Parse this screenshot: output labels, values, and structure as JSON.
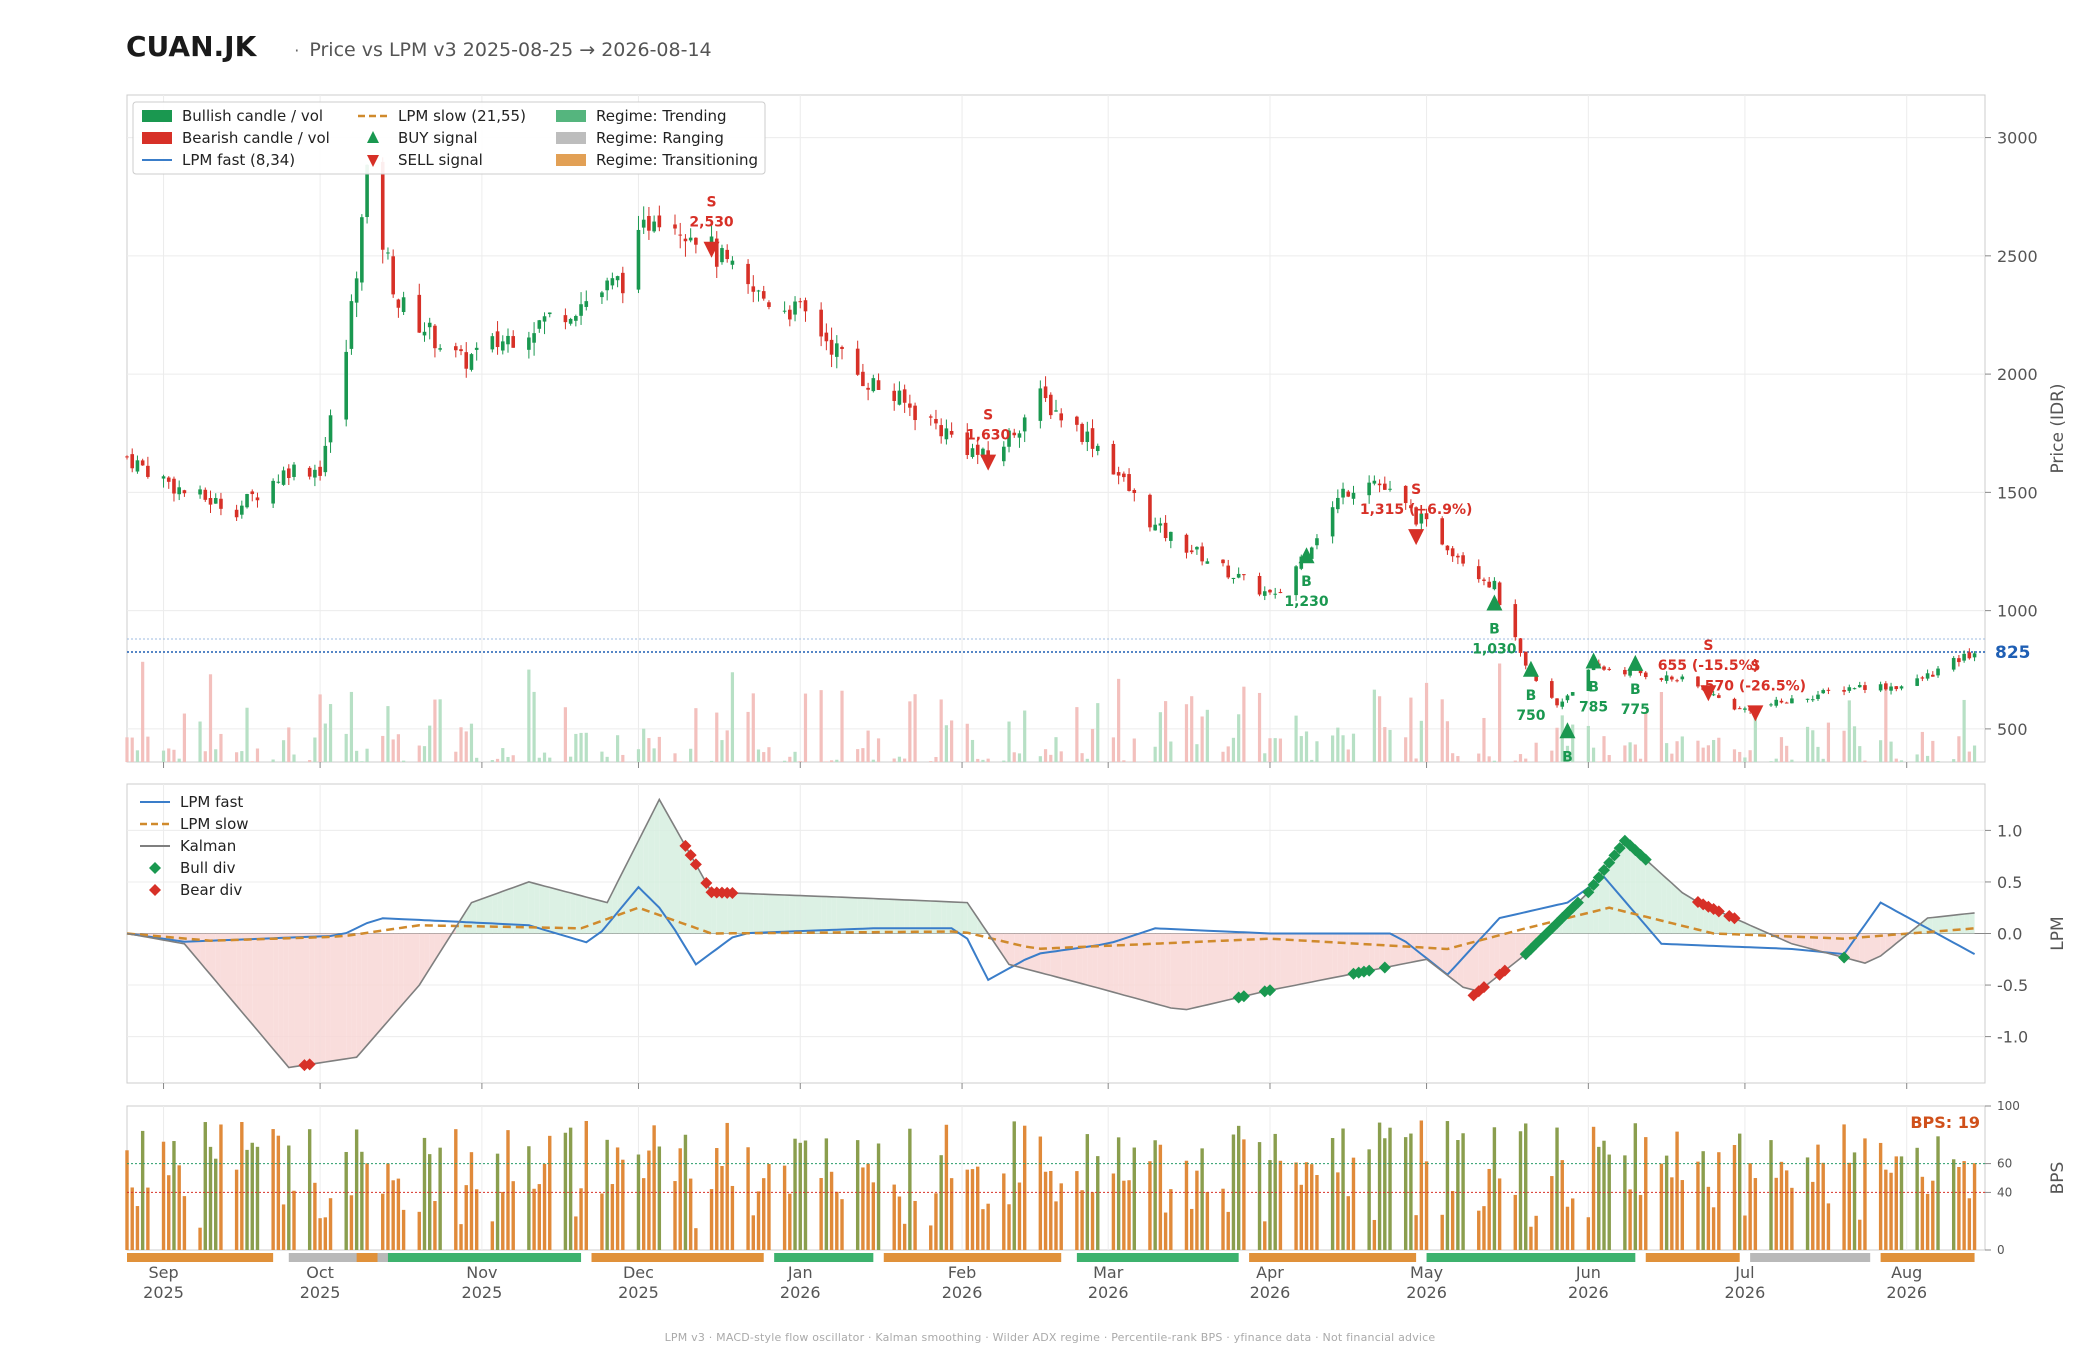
{
  "header": {
    "ticker": "CUAN.JK",
    "separator": "·",
    "subtitle": "Price vs LPM v3  2025-08-25 → 2026-08-14"
  },
  "footer": "LPM v3  ·  MACD-style flow oscillator  ·  Kalman smoothing  ·  Wilder ADX regime  ·  Percentile-rank BPS  ·  yfinance data  ·  Not financial advice",
  "colors": {
    "bull": "#1a9850",
    "bear": "#d73027",
    "fast": "#3a7dc9",
    "slow": "#d08a2c",
    "kalman": "#7f7f7f",
    "trending": "#3db26e",
    "ranging": "#b9b9b9",
    "transitioning": "#e0913a",
    "current": "#1f5fb4",
    "bps": "#d0501a"
  },
  "legends": {
    "price": [
      {
        "label": "Bullish candle / vol",
        "kind": "patch",
        "color": "#1a9850"
      },
      {
        "label": "Bearish candle / vol",
        "kind": "patch",
        "color": "#d73027"
      },
      {
        "label": "LPM fast (8,34)",
        "kind": "line",
        "color": "#3a7dc9"
      },
      {
        "label": "LPM slow (21,55)",
        "kind": "dash",
        "color": "#d08a2c"
      },
      {
        "label": "BUY signal",
        "kind": "up",
        "color": "#1a9850"
      },
      {
        "label": "SELL signal",
        "kind": "down",
        "color": "#d73027"
      },
      {
        "label": "Regime: Trending",
        "kind": "patch",
        "color": "#55b57e"
      },
      {
        "label": "Regime: Ranging",
        "kind": "patch",
        "color": "#bdbdbd"
      },
      {
        "label": "Regime: Transitioning",
        "kind": "patch",
        "color": "#e2a055"
      }
    ],
    "lpm": [
      {
        "label": "LPM fast",
        "kind": "line",
        "color": "#3a7dc9"
      },
      {
        "label": "LPM slow",
        "kind": "dash",
        "color": "#d08a2c"
      },
      {
        "label": "Kalman",
        "kind": "line",
        "color": "#7f7f7f"
      },
      {
        "label": "Bull div",
        "kind": "diamond",
        "color": "#1a9850"
      },
      {
        "label": "Bear div",
        "kind": "diamond",
        "color": "#d73027"
      }
    ]
  },
  "chart_data": [
    {
      "type": "candlestick",
      "panel": "price",
      "ylabel": "Price (IDR)",
      "ylim": [
        360,
        3180
      ],
      "yticks": [
        500,
        1000,
        1500,
        2000,
        2500,
        3000
      ],
      "current_price": 825,
      "current_price_label": "825",
      "close_series": [
        {
          "date": "2025-08-25",
          "close": 1650
        },
        {
          "date": "2025-09-05",
          "close": 1500
        },
        {
          "date": "2025-09-15",
          "close": 1430
        },
        {
          "date": "2025-09-25",
          "close": 1600
        },
        {
          "date": "2025-10-01",
          "close": 1600
        },
        {
          "date": "2025-10-06",
          "close": 2100
        },
        {
          "date": "2025-10-10",
          "close": 2820
        },
        {
          "date": "2025-10-16",
          "close": 2300
        },
        {
          "date": "2025-10-28",
          "close": 2050
        },
        {
          "date": "2025-11-10",
          "close": 2200
        },
        {
          "date": "2025-11-20",
          "close": 2300
        },
        {
          "date": "2025-11-28",
          "close": 2400
        },
        {
          "date": "2025-12-04",
          "close": 2700
        },
        {
          "date": "2025-12-12",
          "close": 2600
        },
        {
          "date": "2025-12-22",
          "close": 2350
        },
        {
          "date": "2026-01-02",
          "close": 2250
        },
        {
          "date": "2026-01-12",
          "close": 2000
        },
        {
          "date": "2026-01-26",
          "close": 1800
        },
        {
          "date": "2026-02-06",
          "close": 1630
        },
        {
          "date": "2026-02-16",
          "close": 1900
        },
        {
          "date": "2026-02-27",
          "close": 1700
        },
        {
          "date": "2026-03-10",
          "close": 1350
        },
        {
          "date": "2026-03-25",
          "close": 1150
        },
        {
          "date": "2026-04-02",
          "close": 1050
        },
        {
          "date": "2026-04-15",
          "close": 1500
        },
        {
          "date": "2026-04-20",
          "close": 1570
        },
        {
          "date": "2026-05-04",
          "close": 1300
        },
        {
          "date": "2026-05-14",
          "close": 1100
        },
        {
          "date": "2026-05-20",
          "close": 750
        },
        {
          "date": "2026-05-26",
          "close": 600
        },
        {
          "date": "2026-06-02",
          "close": 760
        },
        {
          "date": "2026-06-10",
          "close": 740
        },
        {
          "date": "2026-06-20",
          "close": 700
        },
        {
          "date": "2026-06-30",
          "close": 580
        },
        {
          "date": "2026-07-10",
          "close": 620
        },
        {
          "date": "2026-07-22",
          "close": 680
        },
        {
          "date": "2026-08-01",
          "close": 680
        },
        {
          "date": "2026-08-14",
          "close": 825
        }
      ],
      "signals": [
        {
          "type": "SELL",
          "date": "2025-12-15",
          "price": 2530,
          "label": "2,530"
        },
        {
          "type": "SELL",
          "date": "2026-02-06",
          "price": 1630,
          "label": "1,630"
        },
        {
          "type": "BUY",
          "date": "2026-04-08",
          "price": 1230,
          "label": "1,230"
        },
        {
          "type": "SELL",
          "date": "2026-04-29",
          "price": 1315,
          "label": "1,315 (+6.9%)"
        },
        {
          "type": "BUY",
          "date": "2026-05-14",
          "price": 1030,
          "label": "1,030"
        },
        {
          "type": "BUY",
          "date": "2026-05-21",
          "price": 750,
          "label": "750"
        },
        {
          "type": "BUY",
          "date": "2026-05-28",
          "price": 490,
          "label": ""
        },
        {
          "type": "BUY",
          "date": "2026-06-02",
          "price": 785,
          "label": "785"
        },
        {
          "type": "BUY",
          "date": "2026-06-10",
          "price": 775,
          "label": "775"
        },
        {
          "type": "SELL",
          "date": "2026-06-24",
          "price": 655,
          "label": "655 (-15.5%)"
        },
        {
          "type": "SELL",
          "date": "2026-07-03",
          "price": 570,
          "label": "570 (-26.5%)"
        }
      ]
    },
    {
      "type": "line",
      "panel": "lpm",
      "ylabel": "LPM",
      "ylim": [
        -1.45,
        1.45
      ],
      "yticks": [
        -1.0,
        -0.5,
        0.0,
        0.5,
        1.0
      ],
      "series": [
        {
          "name": "LPM fast",
          "points": [
            [
              "2025-08-25",
              0
            ],
            [
              "2025-09-05",
              -0.08
            ],
            [
              "2025-09-20",
              -0.05
            ],
            [
              "2025-10-05",
              -0.02
            ],
            [
              "2025-10-12",
              0.15
            ],
            [
              "2025-10-25",
              0.12
            ],
            [
              "2025-11-10",
              0.08
            ],
            [
              "2025-11-22",
              -0.1
            ],
            [
              "2025-12-01",
              0.45
            ],
            [
              "2025-12-06",
              0.2
            ],
            [
              "2025-12-12",
              -0.3
            ],
            [
              "2025-12-20",
              0.0
            ],
            [
              "2026-01-15",
              0.05
            ],
            [
              "2026-02-01",
              0.05
            ],
            [
              "2026-02-06",
              -0.45
            ],
            [
              "2026-02-15",
              -0.2
            ],
            [
              "2026-03-01",
              -0.1
            ],
            [
              "2026-03-10",
              0.05
            ],
            [
              "2026-04-01",
              0.0
            ],
            [
              "2026-04-25",
              0.0
            ],
            [
              "2026-05-05",
              -0.4
            ],
            [
              "2026-05-15",
              0.15
            ],
            [
              "2026-05-28",
              0.3
            ],
            [
              "2026-06-04",
              0.55
            ],
            [
              "2026-06-15",
              -0.1
            ],
            [
              "2026-07-10",
              -0.15
            ],
            [
              "2026-07-20",
              -0.2
            ],
            [
              "2026-07-27",
              0.3
            ],
            [
              "2026-08-05",
              0.05
            ],
            [
              "2026-08-14",
              -0.2
            ]
          ]
        },
        {
          "name": "LPM slow",
          "points": [
            [
              "2025-08-25",
              0
            ],
            [
              "2025-09-10",
              -0.07
            ],
            [
              "2025-10-05",
              -0.03
            ],
            [
              "2025-10-20",
              0.08
            ],
            [
              "2025-11-20",
              0.05
            ],
            [
              "2025-12-01",
              0.25
            ],
            [
              "2025-12-15",
              0.0
            ],
            [
              "2026-02-01",
              0.02
            ],
            [
              "2026-02-15",
              -0.15
            ],
            [
              "2026-04-01",
              -0.05
            ],
            [
              "2026-05-05",
              -0.15
            ],
            [
              "2026-05-20",
              0.05
            ],
            [
              "2026-06-05",
              0.25
            ],
            [
              "2026-06-25",
              0.0
            ],
            [
              "2026-07-20",
              -0.05
            ],
            [
              "2026-08-14",
              0.05
            ]
          ]
        },
        {
          "name": "Kalman",
          "points": [
            [
              "2025-08-25",
              0
            ],
            [
              "2025-09-05",
              -0.1
            ],
            [
              "2025-09-15",
              -0.7
            ],
            [
              "2025-09-25",
              -1.3
            ],
            [
              "2025-10-08",
              -1.2
            ],
            [
              "2025-10-20",
              -0.5
            ],
            [
              "2025-10-30",
              0.3
            ],
            [
              "2025-11-10",
              0.5
            ],
            [
              "2025-11-25",
              0.3
            ],
            [
              "2025-12-05",
              1.3
            ],
            [
              "2025-12-15",
              0.4
            ],
            [
              "2026-01-10",
              0.35
            ],
            [
              "2026-02-02",
              0.3
            ],
            [
              "2026-02-10",
              -0.3
            ],
            [
              "2026-02-25",
              -0.5
            ],
            [
              "2026-03-15",
              -0.75
            ],
            [
              "2026-04-01",
              -0.55
            ],
            [
              "2026-05-01",
              -0.25
            ],
            [
              "2026-05-10",
              -0.6
            ],
            [
              "2026-05-20",
              -0.2
            ],
            [
              "2026-06-01",
              0.4
            ],
            [
              "2026-06-08",
              0.9
            ],
            [
              "2026-06-20",
              0.35
            ],
            [
              "2026-07-10",
              -0.1
            ],
            [
              "2026-07-25",
              -0.3
            ],
            [
              "2026-08-05",
              0.15
            ],
            [
              "2026-08-14",
              0.2
            ]
          ]
        }
      ],
      "divergences": [
        {
          "type": "bear",
          "dates": [
            "2025-09-28",
            "2025-09-29"
          ]
        },
        {
          "type": "bear",
          "dates": [
            "2025-12-10",
            "2025-12-11",
            "2025-12-12",
            "2025-12-14",
            "2025-12-15",
            "2025-12-16",
            "2025-12-17",
            "2025-12-18",
            "2025-12-19"
          ]
        },
        {
          "type": "bull",
          "dates": [
            "2026-03-26",
            "2026-03-27",
            "2026-03-31",
            "2026-04-01"
          ]
        },
        {
          "type": "bull",
          "dates": [
            "2026-04-17",
            "2026-04-18",
            "2026-04-19",
            "2026-04-20",
            "2026-04-23"
          ]
        },
        {
          "type": "bear",
          "dates": [
            "2026-05-10",
            "2026-05-11",
            "2026-05-12",
            "2026-05-15",
            "2026-05-16"
          ]
        },
        {
          "type": "bull",
          "dates": [
            "2026-05-20",
            "2026-05-21",
            "2026-05-22",
            "2026-05-23",
            "2026-05-24",
            "2026-05-25",
            "2026-05-26",
            "2026-05-27",
            "2026-05-28",
            "2026-05-29",
            "2026-05-30",
            "2026-06-01",
            "2026-06-02",
            "2026-06-03",
            "2026-06-04",
            "2026-06-05",
            "2026-06-06",
            "2026-06-07",
            "2026-06-08",
            "2026-06-09",
            "2026-06-10",
            "2026-06-11",
            "2026-06-12"
          ]
        },
        {
          "type": "bear",
          "dates": [
            "2026-06-22",
            "2026-06-23",
            "2026-06-24",
            "2026-06-25",
            "2026-06-26",
            "2026-06-28",
            "2026-06-29"
          ]
        },
        {
          "type": "bull",
          "dates": [
            "2026-07-20"
          ]
        }
      ]
    },
    {
      "type": "bar",
      "panel": "bps",
      "ylabel": "BPS",
      "ylim": [
        0,
        100
      ],
      "yticks": [
        0,
        40,
        60,
        100
      ],
      "thresholds": [
        60,
        40
      ],
      "current_label": "BPS: 19",
      "regimes": [
        {
          "start": "2025-08-25",
          "end": "2025-09-22",
          "regime": "Transitioning"
        },
        {
          "start": "2025-09-25",
          "end": "2025-10-27",
          "regime": "Ranging"
        },
        {
          "start": "2025-10-08",
          "end": "2025-10-12",
          "regime": "Transitioning"
        },
        {
          "start": "2025-10-14",
          "end": "2025-11-20",
          "regime": "Trending"
        },
        {
          "start": "2025-11-22",
          "end": "2025-12-25",
          "regime": "Transitioning"
        },
        {
          "start": "2025-12-27",
          "end": "2026-01-15",
          "regime": "Trending"
        },
        {
          "start": "2026-01-17",
          "end": "2026-02-20",
          "regime": "Transitioning"
        },
        {
          "start": "2026-02-23",
          "end": "2026-03-26",
          "regime": "Trending"
        },
        {
          "start": "2026-03-28",
          "end": "2026-04-29",
          "regime": "Transitioning"
        },
        {
          "start": "2026-05-01",
          "end": "2026-06-10",
          "regime": "Trending"
        },
        {
          "start": "2026-06-12",
          "end": "2026-06-30",
          "regime": "Transitioning"
        },
        {
          "start": "2026-07-02",
          "end": "2026-07-25",
          "regime": "Ranging"
        },
        {
          "start": "2026-07-27",
          "end": "2026-08-14",
          "regime": "Transitioning"
        }
      ]
    }
  ],
  "x_axis": {
    "months": [
      {
        "label": "Sep",
        "year": "2025",
        "date": "2025-09-01"
      },
      {
        "label": "Oct",
        "year": "2025",
        "date": "2025-10-01"
      },
      {
        "label": "Nov",
        "year": "2025",
        "date": "2025-11-01"
      },
      {
        "label": "Dec",
        "year": "2025",
        "date": "2025-12-01"
      },
      {
        "label": "Jan",
        "year": "2026",
        "date": "2026-01-01"
      },
      {
        "label": "Feb",
        "year": "2026",
        "date": "2026-02-01"
      },
      {
        "label": "Mar",
        "year": "2026",
        "date": "2026-03-01"
      },
      {
        "label": "Apr",
        "year": "2026",
        "date": "2026-04-01"
      },
      {
        "label": "May",
        "year": "2026",
        "date": "2026-05-01"
      },
      {
        "label": "Jun",
        "year": "2026",
        "date": "2026-06-01"
      },
      {
        "label": "Jul",
        "year": "2026",
        "date": "2026-07-01"
      },
      {
        "label": "Aug",
        "year": "2026",
        "date": "2026-08-01"
      }
    ]
  }
}
